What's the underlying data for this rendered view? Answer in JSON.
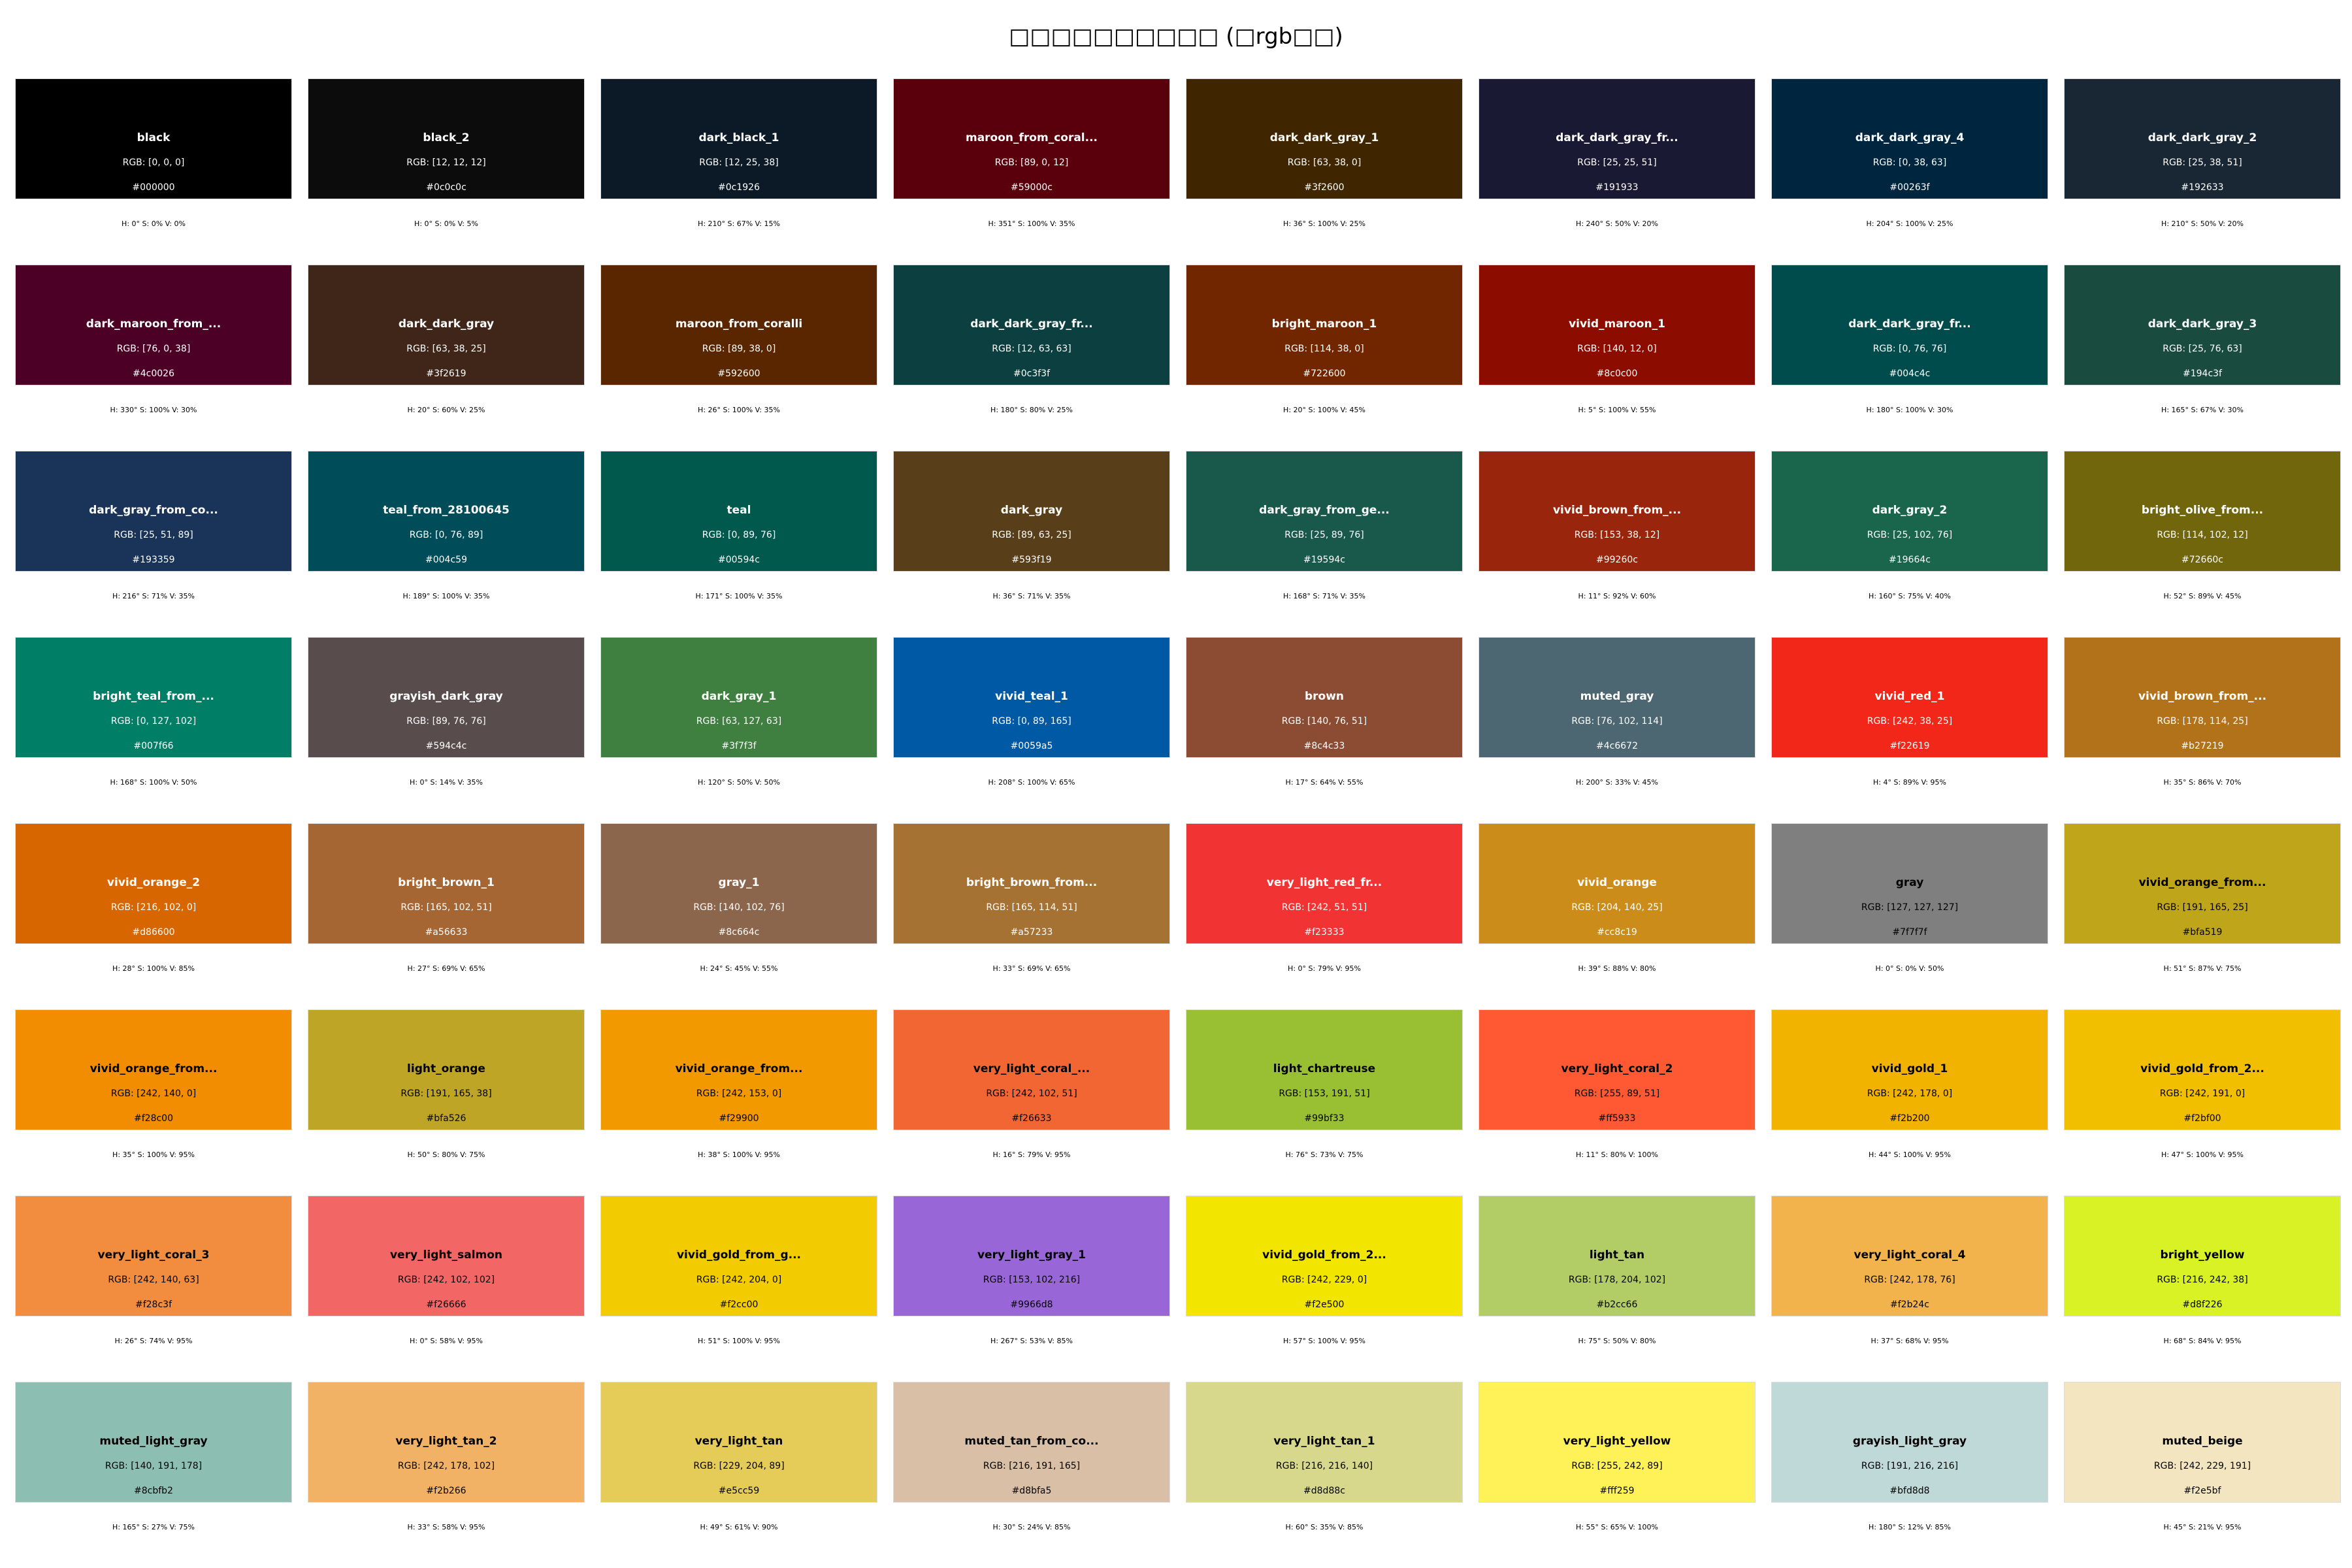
{
  "title": "□□□□□□□□□□ (□rgb□□)",
  "swatches": [
    {
      "name": "black",
      "rgb": "RGB: [0, 0, 0]",
      "hex": "#000000",
      "hsv": "H: 0° S: 0% V: 0%",
      "color": "#000000",
      "text_color": "#ffffff"
    },
    {
      "name": "black_2",
      "rgb": "RGB: [12, 12, 12]",
      "hex": "#0c0c0c",
      "hsv": "H: 0° S: 0% V: 5%",
      "color": "#0c0c0c",
      "text_color": "#ffffff"
    },
    {
      "name": "dark_black_1",
      "rgb": "RGB: [12, 25, 38]",
      "hex": "#0c1926",
      "hsv": "H: 210° S: 67% V: 15%",
      "color": "#0c1926",
      "text_color": "#ffffff"
    },
    {
      "name": "maroon_from_coral...",
      "rgb": "RGB: [89, 0, 12]",
      "hex": "#59000c",
      "hsv": "H: 351° S: 100% V: 35%",
      "color": "#59000c",
      "text_color": "#ffffff"
    },
    {
      "name": "dark_dark_gray_1",
      "rgb": "RGB: [63, 38, 0]",
      "hex": "#3f2600",
      "hsv": "H: 36° S: 100% V: 25%",
      "color": "#3f2600",
      "text_color": "#ffffff"
    },
    {
      "name": "dark_dark_gray_fr...",
      "rgb": "RGB: [25, 25, 51]",
      "hex": "#191933",
      "hsv": "H: 240° S: 50% V: 20%",
      "color": "#191933",
      "text_color": "#ffffff"
    },
    {
      "name": "dark_dark_gray_4",
      "rgb": "RGB: [0, 38, 63]",
      "hex": "#00263f",
      "hsv": "H: 204° S: 100% V: 25%",
      "color": "#00263f",
      "text_color": "#ffffff"
    },
    {
      "name": "dark_dark_gray_2",
      "rgb": "RGB: [25, 38, 51]",
      "hex": "#192633",
      "hsv": "H: 210° S: 50% V: 20%",
      "color": "#192633",
      "text_color": "#ffffff"
    },
    {
      "name": "dark_maroon_from_...",
      "rgb": "RGB: [76, 0, 38]",
      "hex": "#4c0026",
      "hsv": "H: 330° S: 100% V: 30%",
      "color": "#4c0026",
      "text_color": "#ffffff"
    },
    {
      "name": "dark_dark_gray",
      "rgb": "RGB: [63, 38, 25]",
      "hex": "#3f2619",
      "hsv": "H: 20° S: 60% V: 25%",
      "color": "#3f2619",
      "text_color": "#ffffff"
    },
    {
      "name": "maroon_from_coralli",
      "rgb": "RGB: [89, 38, 0]",
      "hex": "#592600",
      "hsv": "H: 26° S: 100% V: 35%",
      "color": "#592600",
      "text_color": "#ffffff"
    },
    {
      "name": "dark_dark_gray_fr...",
      "rgb": "RGB: [12, 63, 63]",
      "hex": "#0c3f3f",
      "hsv": "H: 180° S: 80% V: 25%",
      "color": "#0c3f3f",
      "text_color": "#ffffff"
    },
    {
      "name": "bright_maroon_1",
      "rgb": "RGB: [114, 38, 0]",
      "hex": "#722600",
      "hsv": "H: 20° S: 100% V: 45%",
      "color": "#722600",
      "text_color": "#ffffff"
    },
    {
      "name": "vivid_maroon_1",
      "rgb": "RGB: [140, 12, 0]",
      "hex": "#8c0c00",
      "hsv": "H: 5° S: 100% V: 55%",
      "color": "#8c0c00",
      "text_color": "#ffffff"
    },
    {
      "name": "dark_dark_gray_fr...",
      "rgb": "RGB: [0, 76, 76]",
      "hex": "#004c4c",
      "hsv": "H: 180° S: 100% V: 30%",
      "color": "#004c4c",
      "text_color": "#ffffff"
    },
    {
      "name": "dark_dark_gray_3",
      "rgb": "RGB: [25, 76, 63]",
      "hex": "#194c3f",
      "hsv": "H: 165° S: 67% V: 30%",
      "color": "#194c3f",
      "text_color": "#ffffff"
    },
    {
      "name": "dark_gray_from_co...",
      "rgb": "RGB: [25, 51, 89]",
      "hex": "#193359",
      "hsv": "H: 216° S: 71% V: 35%",
      "color": "#193359",
      "text_color": "#ffffff"
    },
    {
      "name": "teal_from_28100645",
      "rgb": "RGB: [0, 76, 89]",
      "hex": "#004c59",
      "hsv": "H: 189° S: 100% V: 35%",
      "color": "#004c59",
      "text_color": "#ffffff"
    },
    {
      "name": "teal",
      "rgb": "RGB: [0, 89, 76]",
      "hex": "#00594c",
      "hsv": "H: 171° S: 100% V: 35%",
      "color": "#00594c",
      "text_color": "#ffffff"
    },
    {
      "name": "dark_gray",
      "rgb": "RGB: [89, 63, 25]",
      "hex": "#593f19",
      "hsv": "H: 36° S: 71% V: 35%",
      "color": "#593f19",
      "text_color": "#ffffff"
    },
    {
      "name": "dark_gray_from_ge...",
      "rgb": "RGB: [25, 89, 76]",
      "hex": "#19594c",
      "hsv": "H: 168° S: 71% V: 35%",
      "color": "#19594c",
      "text_color": "#ffffff"
    },
    {
      "name": "vivid_brown_from_...",
      "rgb": "RGB: [153, 38, 12]",
      "hex": "#99260c",
      "hsv": "H: 11° S: 92% V: 60%",
      "color": "#99260c",
      "text_color": "#ffffff"
    },
    {
      "name": "dark_gray_2",
      "rgb": "RGB: [25, 102, 76]",
      "hex": "#19664c",
      "hsv": "H: 160° S: 75% V: 40%",
      "color": "#19664c",
      "text_color": "#ffffff"
    },
    {
      "name": "bright_olive_from...",
      "rgb": "RGB: [114, 102, 12]",
      "hex": "#72660c",
      "hsv": "H: 52° S: 89% V: 45%",
      "color": "#72660c",
      "text_color": "#ffffff"
    },
    {
      "name": "bright_teal_from_...",
      "rgb": "RGB: [0, 127, 102]",
      "hex": "#007f66",
      "hsv": "H: 168° S: 100% V: 50%",
      "color": "#007f66",
      "text_color": "#ffffff"
    },
    {
      "name": "grayish_dark_gray",
      "rgb": "RGB: [89, 76, 76]",
      "hex": "#594c4c",
      "hsv": "H: 0° S: 14% V: 35%",
      "color": "#594c4c",
      "text_color": "#ffffff"
    },
    {
      "name": "dark_gray_1",
      "rgb": "RGB: [63, 127, 63]",
      "hex": "#3f7f3f",
      "hsv": "H: 120° S: 50% V: 50%",
      "color": "#3f7f3f",
      "text_color": "#ffffff"
    },
    {
      "name": "vivid_teal_1",
      "rgb": "RGB: [0, 89, 165]",
      "hex": "#0059a5",
      "hsv": "H: 208° S: 100% V: 65%",
      "color": "#0059a5",
      "text_color": "#ffffff"
    },
    {
      "name": "brown",
      "rgb": "RGB: [140, 76, 51]",
      "hex": "#8c4c33",
      "hsv": "H: 17° S: 64% V: 55%",
      "color": "#8c4c33",
      "text_color": "#ffffff"
    },
    {
      "name": "muted_gray",
      "rgb": "RGB: [76, 102, 114]",
      "hex": "#4c6672",
      "hsv": "H: 200° S: 33% V: 45%",
      "color": "#4c6672",
      "text_color": "#ffffff"
    },
    {
      "name": "vivid_red_1",
      "rgb": "RGB: [242, 38, 25]",
      "hex": "#f22619",
      "hsv": "H: 4° S: 89% V: 95%",
      "color": "#f22619",
      "text_color": "#ffffff"
    },
    {
      "name": "vivid_brown_from_...",
      "rgb": "RGB: [178, 114, 25]",
      "hex": "#b27219",
      "hsv": "H: 35° S: 86% V: 70%",
      "color": "#b27219",
      "text_color": "#ffffff"
    },
    {
      "name": "vivid_orange_2",
      "rgb": "RGB: [216, 102, 0]",
      "hex": "#d86600",
      "hsv": "H: 28° S: 100% V: 85%",
      "color": "#d86600",
      "text_color": "#ffffff"
    },
    {
      "name": "bright_brown_1",
      "rgb": "RGB: [165, 102, 51]",
      "hex": "#a56633",
      "hsv": "H: 27° S: 69% V: 65%",
      "color": "#a56633",
      "text_color": "#ffffff"
    },
    {
      "name": "gray_1",
      "rgb": "RGB: [140, 102, 76]",
      "hex": "#8c664c",
      "hsv": "H: 24° S: 45% V: 55%",
      "color": "#8c664c",
      "text_color": "#ffffff"
    },
    {
      "name": "bright_brown_from...",
      "rgb": "RGB: [165, 114, 51]",
      "hex": "#a57233",
      "hsv": "H: 33° S: 69% V: 65%",
      "color": "#a57233",
      "text_color": "#ffffff"
    },
    {
      "name": "very_light_red_fr...",
      "rgb": "RGB: [242, 51, 51]",
      "hex": "#f23333",
      "hsv": "H: 0° S: 79% V: 95%",
      "color": "#f23333",
      "text_color": "#ffffff"
    },
    {
      "name": "vivid_orange",
      "rgb": "RGB: [204, 140, 25]",
      "hex": "#cc8c19",
      "hsv": "H: 39° S: 88% V: 80%",
      "color": "#cc8c19",
      "text_color": "#ffffff"
    },
    {
      "name": "gray",
      "rgb": "RGB: [127, 127, 127]",
      "hex": "#7f7f7f",
      "hsv": "H: 0° S: 0% V: 50%",
      "color": "#7f7f7f",
      "text_color": "#000000"
    },
    {
      "name": "vivid_orange_from...",
      "rgb": "RGB: [191, 165, 25]",
      "hex": "#bfa519",
      "hsv": "H: 51° S: 87% V: 75%",
      "color": "#bfa519",
      "text_color": "#000000"
    },
    {
      "name": "vivid_orange_from...",
      "rgb": "RGB: [242, 140, 0]",
      "hex": "#f28c00",
      "hsv": "H: 35° S: 100% V: 95%",
      "color": "#f28c00",
      "text_color": "#000000"
    },
    {
      "name": "light_orange",
      "rgb": "RGB: [191, 165, 38]",
      "hex": "#bfa526",
      "hsv": "H: 50° S: 80% V: 75%",
      "color": "#bfa526",
      "text_color": "#000000"
    },
    {
      "name": "vivid_orange_from...",
      "rgb": "RGB: [242, 153, 0]",
      "hex": "#f29900",
      "hsv": "H: 38° S: 100% V: 95%",
      "color": "#f29900",
      "text_color": "#000000"
    },
    {
      "name": "very_light_coral_...",
      "rgb": "RGB: [242, 102, 51]",
      "hex": "#f26633",
      "hsv": "H: 16° S: 79% V: 95%",
      "color": "#f26633",
      "text_color": "#000000"
    },
    {
      "name": "light_chartreuse",
      "rgb": "RGB: [153, 191, 51]",
      "hex": "#99bf33",
      "hsv": "H: 76° S: 73% V: 75%",
      "color": "#99bf33",
      "text_color": "#000000"
    },
    {
      "name": "very_light_coral_2",
      "rgb": "RGB: [255, 89, 51]",
      "hex": "#ff5933",
      "hsv": "H: 11° S: 80% V: 100%",
      "color": "#ff5933",
      "text_color": "#000000"
    },
    {
      "name": "vivid_gold_1",
      "rgb": "RGB: [242, 178, 0]",
      "hex": "#f2b200",
      "hsv": "H: 44° S: 100% V: 95%",
      "color": "#f2b200",
      "text_color": "#000000"
    },
    {
      "name": "vivid_gold_from_2...",
      "rgb": "RGB: [242, 191, 0]",
      "hex": "#f2bf00",
      "hsv": "H: 47° S: 100% V: 95%",
      "color": "#f2bf00",
      "text_color": "#000000"
    },
    {
      "name": "very_light_coral_3",
      "rgb": "RGB: [242, 140, 63]",
      "hex": "#f28c3f",
      "hsv": "H: 26° S: 74% V: 95%",
      "color": "#f28c3f",
      "text_color": "#000000"
    },
    {
      "name": "very_light_salmon",
      "rgb": "RGB: [242, 102, 102]",
      "hex": "#f26666",
      "hsv": "H: 0° S: 58% V: 95%",
      "color": "#f26666",
      "text_color": "#000000"
    },
    {
      "name": "vivid_gold_from_g...",
      "rgb": "RGB: [242, 204, 0]",
      "hex": "#f2cc00",
      "hsv": "H: 51° S: 100% V: 95%",
      "color": "#f2cc00",
      "text_color": "#000000"
    },
    {
      "name": "very_light_gray_1",
      "rgb": "RGB: [153, 102, 216]",
      "hex": "#9966d8",
      "hsv": "H: 267° S: 53% V: 85%",
      "color": "#9966d8",
      "text_color": "#000000"
    },
    {
      "name": "vivid_gold_from_2...",
      "rgb": "RGB: [242, 229, 0]",
      "hex": "#f2e500",
      "hsv": "H: 57° S: 100% V: 95%",
      "color": "#f2e500",
      "text_color": "#000000"
    },
    {
      "name": "light_tan",
      "rgb": "RGB: [178, 204, 102]",
      "hex": "#b2cc66",
      "hsv": "H: 75° S: 50% V: 80%",
      "color": "#b2cc66",
      "text_color": "#000000"
    },
    {
      "name": "very_light_coral_4",
      "rgb": "RGB: [242, 178, 76]",
      "hex": "#f2b24c",
      "hsv": "H: 37° S: 68% V: 95%",
      "color": "#f2b24c",
      "text_color": "#000000"
    },
    {
      "name": "bright_yellow",
      "rgb": "RGB: [216, 242, 38]",
      "hex": "#d8f226",
      "hsv": "H: 68° S: 84% V: 95%",
      "color": "#d8f226",
      "text_color": "#000000"
    },
    {
      "name": "muted_light_gray",
      "rgb": "RGB: [140, 191, 178]",
      "hex": "#8cbfb2",
      "hsv": "H: 165° S: 27% V: 75%",
      "color": "#8cbfb2",
      "text_color": "#000000"
    },
    {
      "name": "very_light_tan_2",
      "rgb": "RGB: [242, 178, 102]",
      "hex": "#f2b266",
      "hsv": "H: 33° S: 58% V: 95%",
      "color": "#f2b266",
      "text_color": "#000000"
    },
    {
      "name": "very_light_tan",
      "rgb": "RGB: [229, 204, 89]",
      "hex": "#e5cc59",
      "hsv": "H: 49° S: 61% V: 90%",
      "color": "#e5cc59",
      "text_color": "#000000"
    },
    {
      "name": "muted_tan_from_co...",
      "rgb": "RGB: [216, 191, 165]",
      "hex": "#d8bfa5",
      "hsv": "H: 30° S: 24% V: 85%",
      "color": "#d8bfa5",
      "text_color": "#000000"
    },
    {
      "name": "very_light_tan_1",
      "rgb": "RGB: [216, 216, 140]",
      "hex": "#d8d88c",
      "hsv": "H: 60° S: 35% V: 85%",
      "color": "#d8d88c",
      "text_color": "#000000"
    },
    {
      "name": "very_light_yellow",
      "rgb": "RGB: [255, 242, 89]",
      "hex": "#fff259",
      "hsv": "H: 55° S: 65% V: 100%",
      "color": "#fff259",
      "text_color": "#000000"
    },
    {
      "name": "grayish_light_gray",
      "rgb": "RGB: [191, 216, 216]",
      "hex": "#bfd8d8",
      "hsv": "H: 180° S: 12% V: 85%",
      "color": "#bfd8d8",
      "text_color": "#000000"
    },
    {
      "name": "muted_beige",
      "rgb": "RGB: [242, 229, 191]",
      "hex": "#f2e5bf",
      "hsv": "H: 45° S: 21% V: 95%",
      "color": "#f2e5bf",
      "text_color": "#000000"
    }
  ]
}
